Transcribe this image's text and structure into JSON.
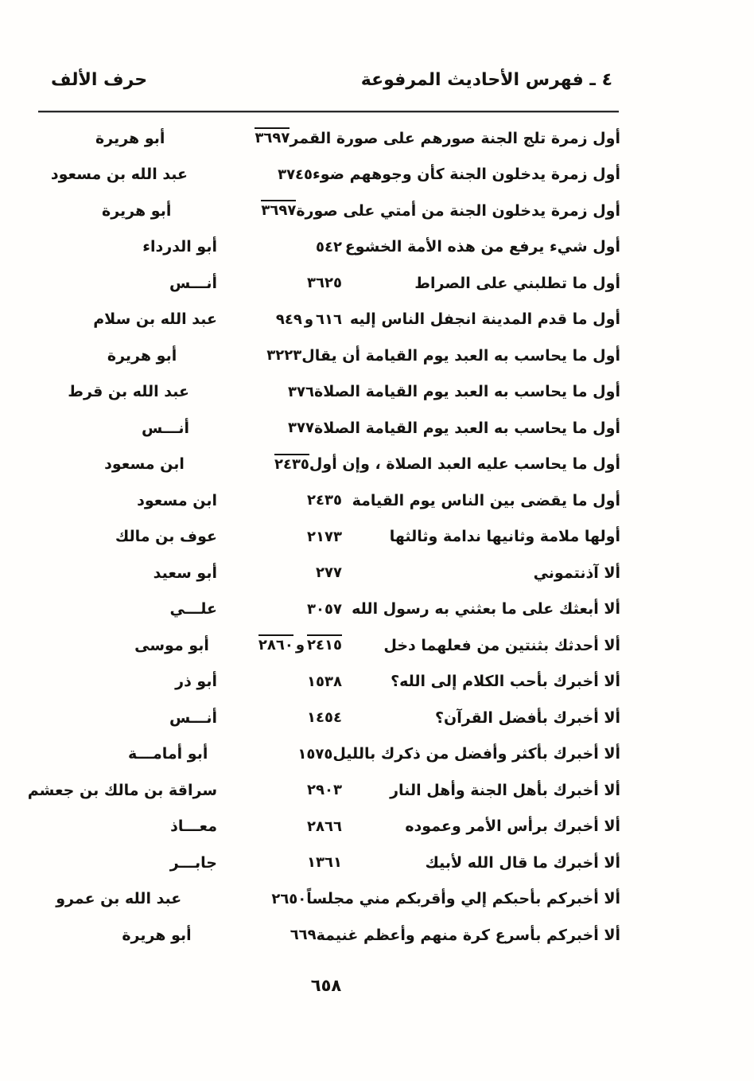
{
  "header": {
    "title": "٤ ـ فهرس الأحاديث المرفوعة",
    "section": "حرف الألف"
  },
  "footer": {
    "page_number": "٦٥٨"
  },
  "colors": {
    "paper": "#fffefc",
    "ink": "#151310"
  },
  "index": {
    "number_separator": "و",
    "rows": [
      {
        "text": "أول زمرة تلج الجنة صورهم على صورة القمر",
        "numbers": [
          {
            "value": "٣٦٩٧",
            "overline": true
          }
        ],
        "narrator": "أبو هريرة"
      },
      {
        "text": "أول زمرة يدخلون الجنة كأن وجوههم ضوء",
        "numbers": [
          {
            "value": "٣٧٤٥",
            "overline": false
          }
        ],
        "narrator": "عبد الله بن مسعود"
      },
      {
        "text": "أول زمرة يدخلون الجنة من أمتي على صورة",
        "numbers": [
          {
            "value": "٣٦٩٧",
            "overline": true
          }
        ],
        "narrator": "أبو هريرة"
      },
      {
        "text": "أول شيء يرفع من هذه الأمة الخشوع",
        "numbers": [
          {
            "value": "٥٤٢",
            "overline": false
          }
        ],
        "narrator": "أبو الدرداء"
      },
      {
        "text": "أول ما تطلبني على الصراط",
        "numbers": [
          {
            "value": "٣٦٢٥",
            "overline": false
          }
        ],
        "narrator": "أنـــس"
      },
      {
        "text": "أول ما قدم المدينة انجفل الناس إليه",
        "numbers": [
          {
            "value": "٦١٦",
            "overline": false
          },
          {
            "value": "٩٤٩",
            "overline": false
          }
        ],
        "narrator": "عبد الله بن سلام"
      },
      {
        "text": "أول ما يحاسب به العبد يوم القيامة أن يقال",
        "numbers": [
          {
            "value": "٣٢٢٣",
            "overline": false
          }
        ],
        "narrator": "أبو هريرة"
      },
      {
        "text": "أول ما يحاسب به العبد يوم القيامة الصلاة",
        "numbers": [
          {
            "value": "٣٧٦",
            "overline": false
          }
        ],
        "narrator": "عبد الله بن قرط"
      },
      {
        "text": "أول ما يحاسب به العبد يوم القيامة الصلاة",
        "numbers": [
          {
            "value": "٣٧٧",
            "overline": false
          }
        ],
        "narrator": "أنـــس"
      },
      {
        "text": "أول ما يحاسب عليه العبد الصلاة ، وإن أول",
        "numbers": [
          {
            "value": "٢٤٣٥",
            "overline": true
          }
        ],
        "narrator": "ابن مسعود"
      },
      {
        "text": "أول ما يقضى بين الناس يوم القيامة",
        "numbers": [
          {
            "value": "٢٤٣٥",
            "overline": false
          }
        ],
        "narrator": "ابن مسعود"
      },
      {
        "text": "أولها ملامة وثانيها ندامة وثالثها",
        "numbers": [
          {
            "value": "٢١٧٣",
            "overline": false
          }
        ],
        "narrator": "عوف بن مالك"
      },
      {
        "text": "ألا آذنتموني",
        "numbers": [
          {
            "value": "٢٧٧",
            "overline": false
          }
        ],
        "narrator": "أبو سعيد"
      },
      {
        "text": "ألا أبعثك على ما بعثني به رسول الله",
        "numbers": [
          {
            "value": "٣٠٥٧",
            "overline": false
          }
        ],
        "narrator": "علـــي"
      },
      {
        "text": "ألا أحدثك بثنتين من فعلهما دخل",
        "numbers": [
          {
            "value": "٢٤١٥",
            "overline": true
          },
          {
            "value": "٢٨٦٠",
            "overline": true
          }
        ],
        "narrator": "أبو موسى"
      },
      {
        "text": "ألا أخبرك بأحب الكلام إلى الله؟",
        "numbers": [
          {
            "value": "١٥٣٨",
            "overline": false
          }
        ],
        "narrator": "أبو ذر"
      },
      {
        "text": "ألا أخبرك بأفضل القرآن؟",
        "numbers": [
          {
            "value": "١٤٥٤",
            "overline": false
          }
        ],
        "narrator": "أنـــس"
      },
      {
        "text": "ألا أخبرك بأكثر وأفضل من ذكرك بالليل",
        "numbers": [
          {
            "value": "١٥٧٥",
            "overline": false
          }
        ],
        "narrator": "أبو أمامـــة"
      },
      {
        "text": "ألا أخبرك بأهل الجنة وأهل النار",
        "numbers": [
          {
            "value": "٢٩٠٣",
            "overline": false
          }
        ],
        "narrator": "سراقة بن مالك بن جعشم"
      },
      {
        "text": "ألا أخبرك برأس الأمر وعموده",
        "numbers": [
          {
            "value": "٢٨٦٦",
            "overline": false
          }
        ],
        "narrator": "معـــاذ"
      },
      {
        "text": "ألا أخبرك ما قال الله لأبيك",
        "numbers": [
          {
            "value": "١٣٦١",
            "overline": false
          }
        ],
        "narrator": "جابـــر"
      },
      {
        "text": "ألا أخبركم بأحبكم إلي وأقربكم مني مجلساً",
        "numbers": [
          {
            "value": "٢٦٥٠",
            "overline": false
          }
        ],
        "narrator": "عبد الله بن عمرو"
      },
      {
        "text": "ألا أخبركم بأسرع كرة منهم وأعظم غنيمة",
        "numbers": [
          {
            "value": "٦٦٩",
            "overline": false
          }
        ],
        "narrator": "أبو هريرة"
      }
    ]
  }
}
